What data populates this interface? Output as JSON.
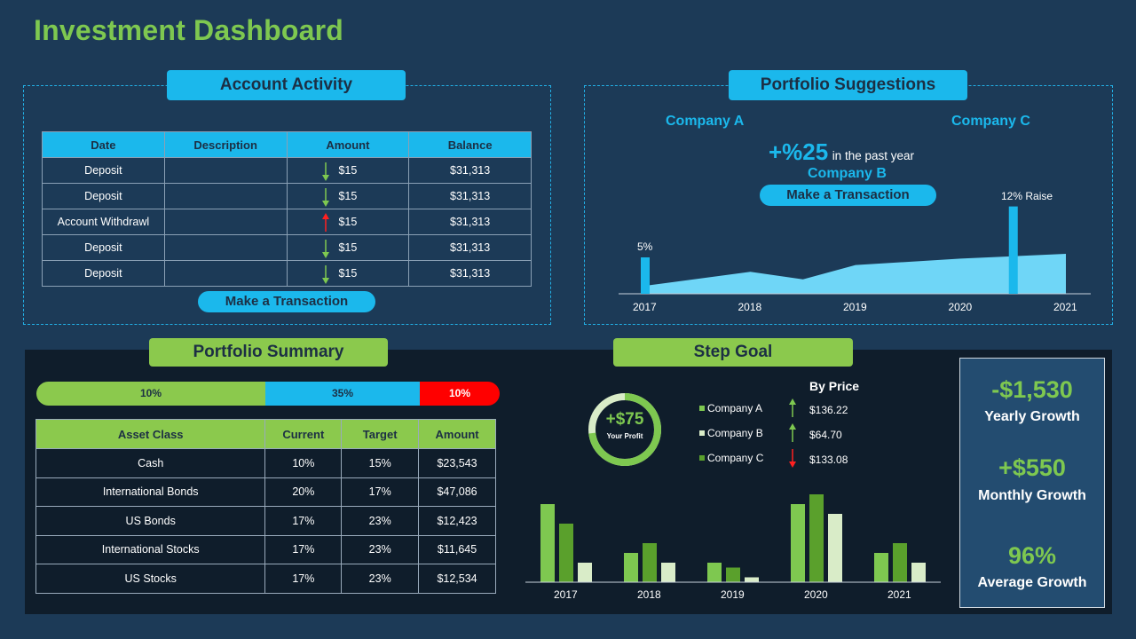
{
  "title": "Investment Dashboard",
  "account_activity": {
    "heading": "Account Activity",
    "columns": [
      "Date",
      "Description",
      "Amount",
      "Balance"
    ],
    "rows": [
      {
        "date": "Deposit",
        "description": "",
        "amount": "$15",
        "balance": "$31,313",
        "direction": "down"
      },
      {
        "date": "Deposit",
        "description": "",
        "amount": "$15",
        "balance": "$31,313",
        "direction": "down"
      },
      {
        "date": "Account Withdrawl",
        "description": "",
        "amount": "$15",
        "balance": "$31,313",
        "direction": "up"
      },
      {
        "date": "Deposit",
        "description": "",
        "amount": "$15",
        "balance": "$31,313",
        "direction": "down"
      },
      {
        "date": "Deposit",
        "description": "",
        "amount": "$15",
        "balance": "$31,313",
        "direction": "down"
      }
    ],
    "button": "Make a Transaction"
  },
  "portfolio_suggestions": {
    "heading": "Portfolio Suggestions",
    "company_a": "Company A",
    "company_b": "Company B",
    "company_c": "Company C",
    "growth_value": "+%25",
    "growth_text": "in the past year",
    "button": "Make a Transaction",
    "raise_label": "12%  Raise",
    "low_label": "5%"
  },
  "portfolio_summary": {
    "heading": "Portfolio Summary",
    "segments": [
      {
        "label": "10%",
        "color": "#8bc94d"
      },
      {
        "label": "35%",
        "color": "#1bb8ec"
      },
      {
        "label": "10%",
        "color": "#ff0000"
      }
    ],
    "columns": [
      "Asset Class",
      "Current",
      "Target",
      "Amount"
    ],
    "rows": [
      [
        "Cash",
        "10%",
        "15%",
        "$23,543"
      ],
      [
        "International Bonds",
        "20%",
        "17%",
        "$47,086"
      ],
      [
        "US Bonds",
        "17%",
        "23%",
        "$12,423"
      ],
      [
        "International Stocks",
        "17%",
        "23%",
        "$11,645"
      ],
      [
        "US Stocks",
        "17%",
        "23%",
        "$12,534"
      ]
    ]
  },
  "step_goal": {
    "heading": "Step Goal",
    "ring_value": "+$75",
    "ring_label": "Your Profit",
    "by_price": "By Price",
    "companies": [
      {
        "name": "Company A",
        "price": "$136.22",
        "trend": "up",
        "color": "#7ec850"
      },
      {
        "name": "Company B",
        "price": "$64.70",
        "trend": "up",
        "color": "#d9ecc8"
      },
      {
        "name": "Company C",
        "price": "$133.08",
        "trend": "down",
        "color": "#5aa02c"
      }
    ]
  },
  "growth": {
    "yearly_value": "-$1,530",
    "yearly_label": "Yearly Growth",
    "monthly_value": "+$550",
    "monthly_label": "Monthly Growth",
    "average_value": "96%",
    "average_label": "Average Growth"
  },
  "colors": {
    "accent_blue": "#1bb8ec",
    "accent_green": "#8bc94d",
    "down_arrow": "#7ec850",
    "up_arrow": "#ff2020"
  },
  "chart_data": [
    {
      "type": "area",
      "title": "Portfolio Suggestions",
      "categories": [
        "2017",
        "2018",
        "2019",
        "2020",
        "2021"
      ],
      "series": [
        {
          "name": "Portfolio",
          "values": [
            2,
            5,
            6,
            8,
            10
          ]
        }
      ],
      "highlights": [
        {
          "label": "5%",
          "x": "2017",
          "value": 5
        },
        {
          "label": "12%  Raise",
          "x": "2020.5",
          "value": 12
        }
      ],
      "ylim": [
        0,
        14
      ]
    },
    {
      "type": "bar",
      "title": "Step Goal",
      "categories": [
        "2017",
        "2018",
        "2019",
        "2020",
        "2021"
      ],
      "series": [
        {
          "name": "Company A",
          "values": [
            8,
            3,
            2,
            8,
            3
          ]
        },
        {
          "name": "Company B",
          "values": [
            6,
            4,
            1.5,
            9,
            4
          ]
        },
        {
          "name": "Company C",
          "values": [
            2,
            2,
            0.5,
            7,
            2
          ]
        }
      ],
      "ylim": [
        0,
        10
      ]
    }
  ]
}
